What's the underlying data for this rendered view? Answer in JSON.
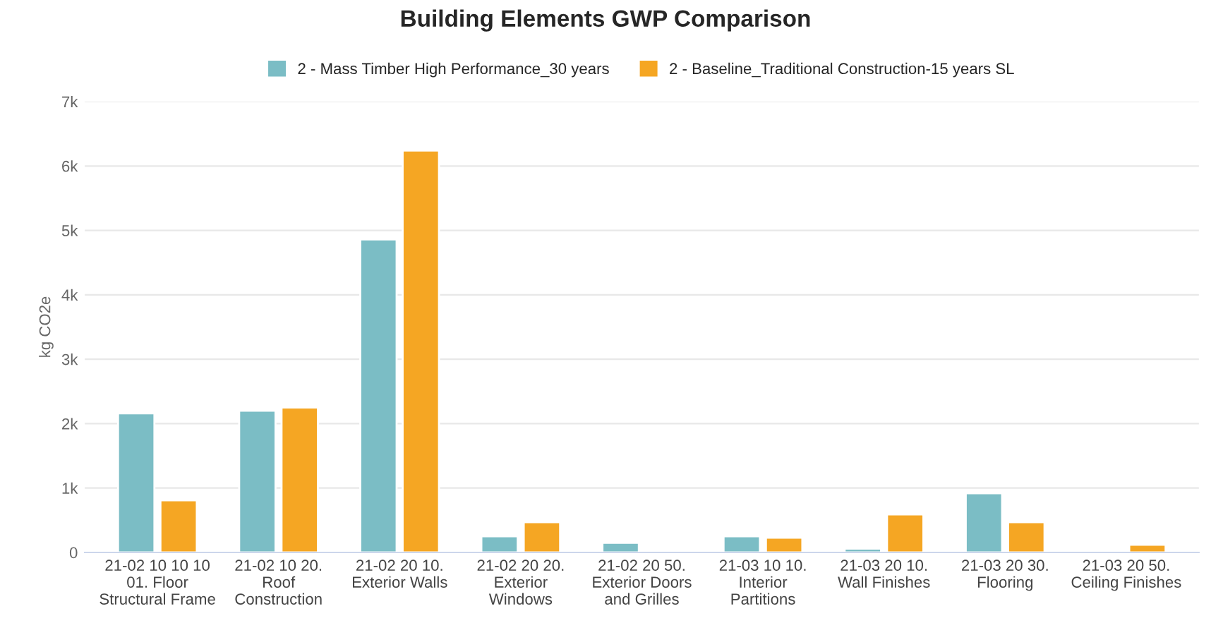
{
  "chart_data": {
    "type": "bar",
    "title": "Building Elements GWP Comparison",
    "ylabel": "kg CO2e",
    "categories": [
      "21-02 10 10 10\n01. Floor\nStructural Frame",
      "21-02 10 20.\nRoof\nConstruction",
      "21-02 20 10.\nExterior Walls",
      "21-02 20 20.\nExterior\nWindows",
      "21-02 20 50.\nExterior Doors\nand Grilles",
      "21-03 10 10.\nInterior\nPartitions",
      "21-03 20 10.\nWall Finishes",
      "21-03 20 30.\nFlooring",
      "21-03 20 50.\nCeiling Finishes"
    ],
    "series": [
      {
        "name": "2 - Mass Timber High Performance_30 years",
        "color": "#7bbdc5",
        "values": [
          2160,
          2200,
          4860,
          250,
          150,
          250,
          60,
          920,
          null
        ]
      },
      {
        "name": "2 - Baseline_Traditional Construction-15 years SL",
        "color": "#f5a623",
        "values": [
          810,
          2250,
          6240,
          470,
          null,
          230,
          590,
          470,
          120
        ]
      }
    ],
    "ylim": [
      0,
      7000
    ],
    "yticks": [
      0,
      {
        "value": 1000,
        "label": "1k"
      },
      {
        "value": 2000,
        "label": "2k"
      },
      {
        "value": 3000,
        "label": "3k"
      },
      {
        "value": 4000,
        "label": "4k"
      },
      {
        "value": 5000,
        "label": "5k"
      },
      {
        "value": 6000,
        "label": "6k"
      },
      {
        "value": 7000,
        "label": "7k"
      }
    ],
    "grid": "y",
    "legend": "top"
  }
}
